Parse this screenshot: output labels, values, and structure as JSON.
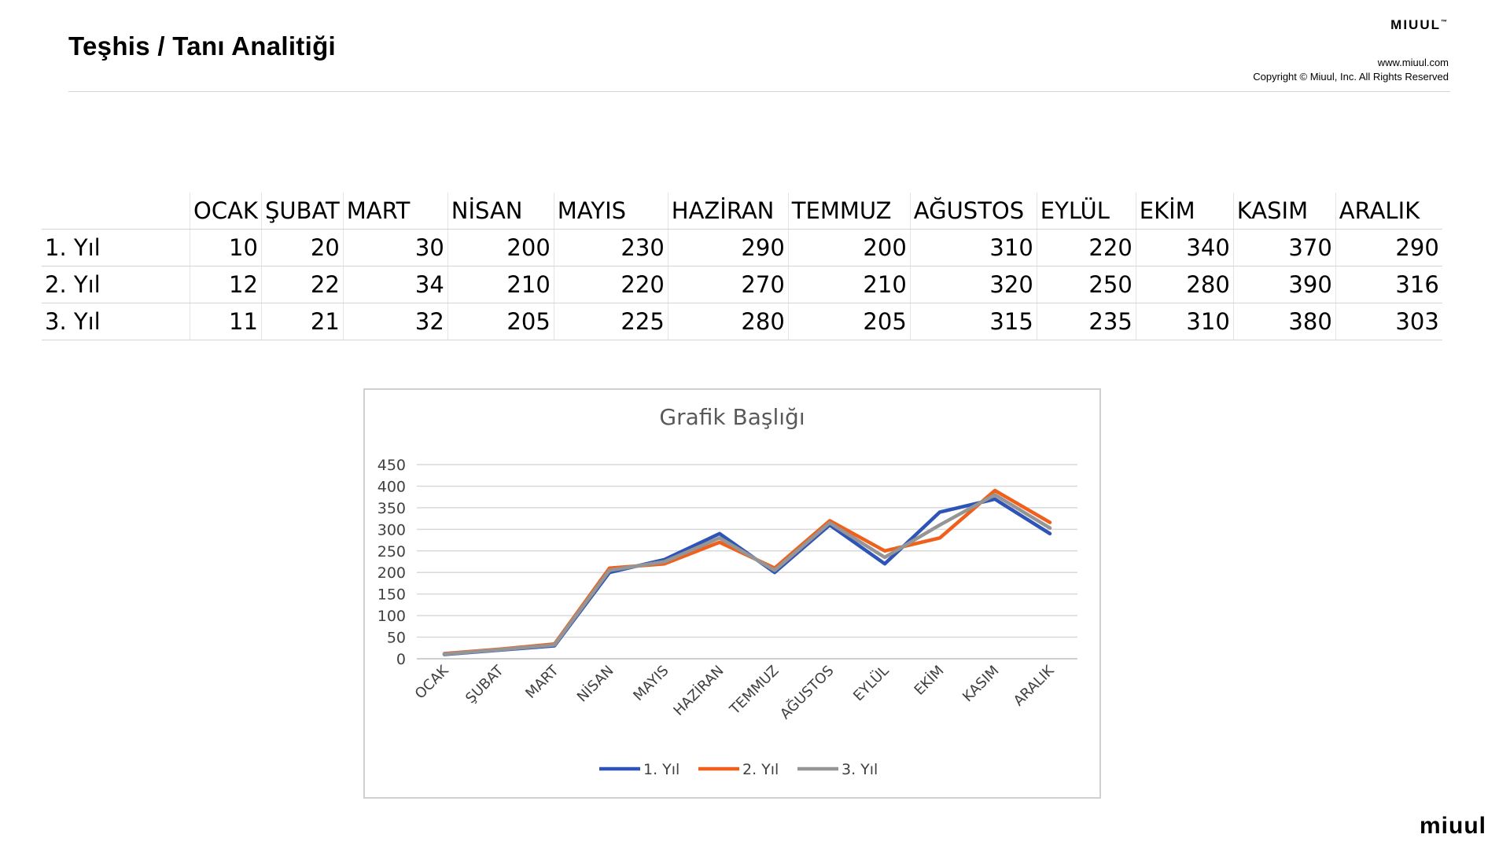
{
  "header": {
    "title": "Teşhis / Tanı Analitiği",
    "brand": "MIUUL",
    "brand_tm": "™",
    "url": "www.miuul.com",
    "copyright": "Copyright © Miuul, Inc. All Rights Reserved"
  },
  "footer": {
    "logo": "miuul"
  },
  "table": {
    "months": [
      "OCAK",
      "ŞUBAT",
      "MART",
      "NİSAN",
      "MAYIS",
      "HAZİRAN",
      "TEMMUZ",
      "AĞUSTOS",
      "EYLÜL",
      "EKİM",
      "KASIM",
      "ARALIK"
    ],
    "rows": [
      {
        "label": "1. Yıl",
        "values": [
          10,
          20,
          30,
          200,
          230,
          290,
          200,
          310,
          220,
          340,
          370,
          290
        ]
      },
      {
        "label": "2. Yıl",
        "values": [
          12,
          22,
          34,
          210,
          220,
          270,
          210,
          320,
          250,
          280,
          390,
          316
        ]
      },
      {
        "label": "3. Yıl",
        "values": [
          11,
          21,
          32,
          205,
          225,
          280,
          205,
          315,
          235,
          310,
          380,
          303
        ]
      }
    ]
  },
  "chart_data": {
    "type": "line",
    "title": "Grafik Başlığı",
    "xlabel": "",
    "ylabel": "",
    "categories": [
      "OCAK",
      "ŞUBAT",
      "MART",
      "NİSAN",
      "MAYIS",
      "HAZİRAN",
      "TEMMUZ",
      "AĞUSTOS",
      "EYLÜL",
      "EKİM",
      "KASIM",
      "ARALIK"
    ],
    "series": [
      {
        "name": "1. Yıl",
        "color": "#2e54b8",
        "values": [
          10,
          20,
          30,
          200,
          230,
          290,
          200,
          310,
          220,
          340,
          370,
          290
        ]
      },
      {
        "name": "2. Yıl",
        "color": "#f0601c",
        "values": [
          12,
          22,
          34,
          210,
          220,
          270,
          210,
          320,
          250,
          280,
          390,
          316
        ]
      },
      {
        "name": "3. Yıl",
        "color": "#959595",
        "values": [
          11,
          21,
          32,
          205,
          225,
          280,
          205,
          315,
          235,
          310,
          380,
          303
        ]
      }
    ],
    "ylim": [
      0,
      450
    ],
    "yticks": [
      0,
      50,
      100,
      150,
      200,
      250,
      300,
      350,
      400,
      450
    ],
    "grid": true,
    "legend": "bottom"
  }
}
